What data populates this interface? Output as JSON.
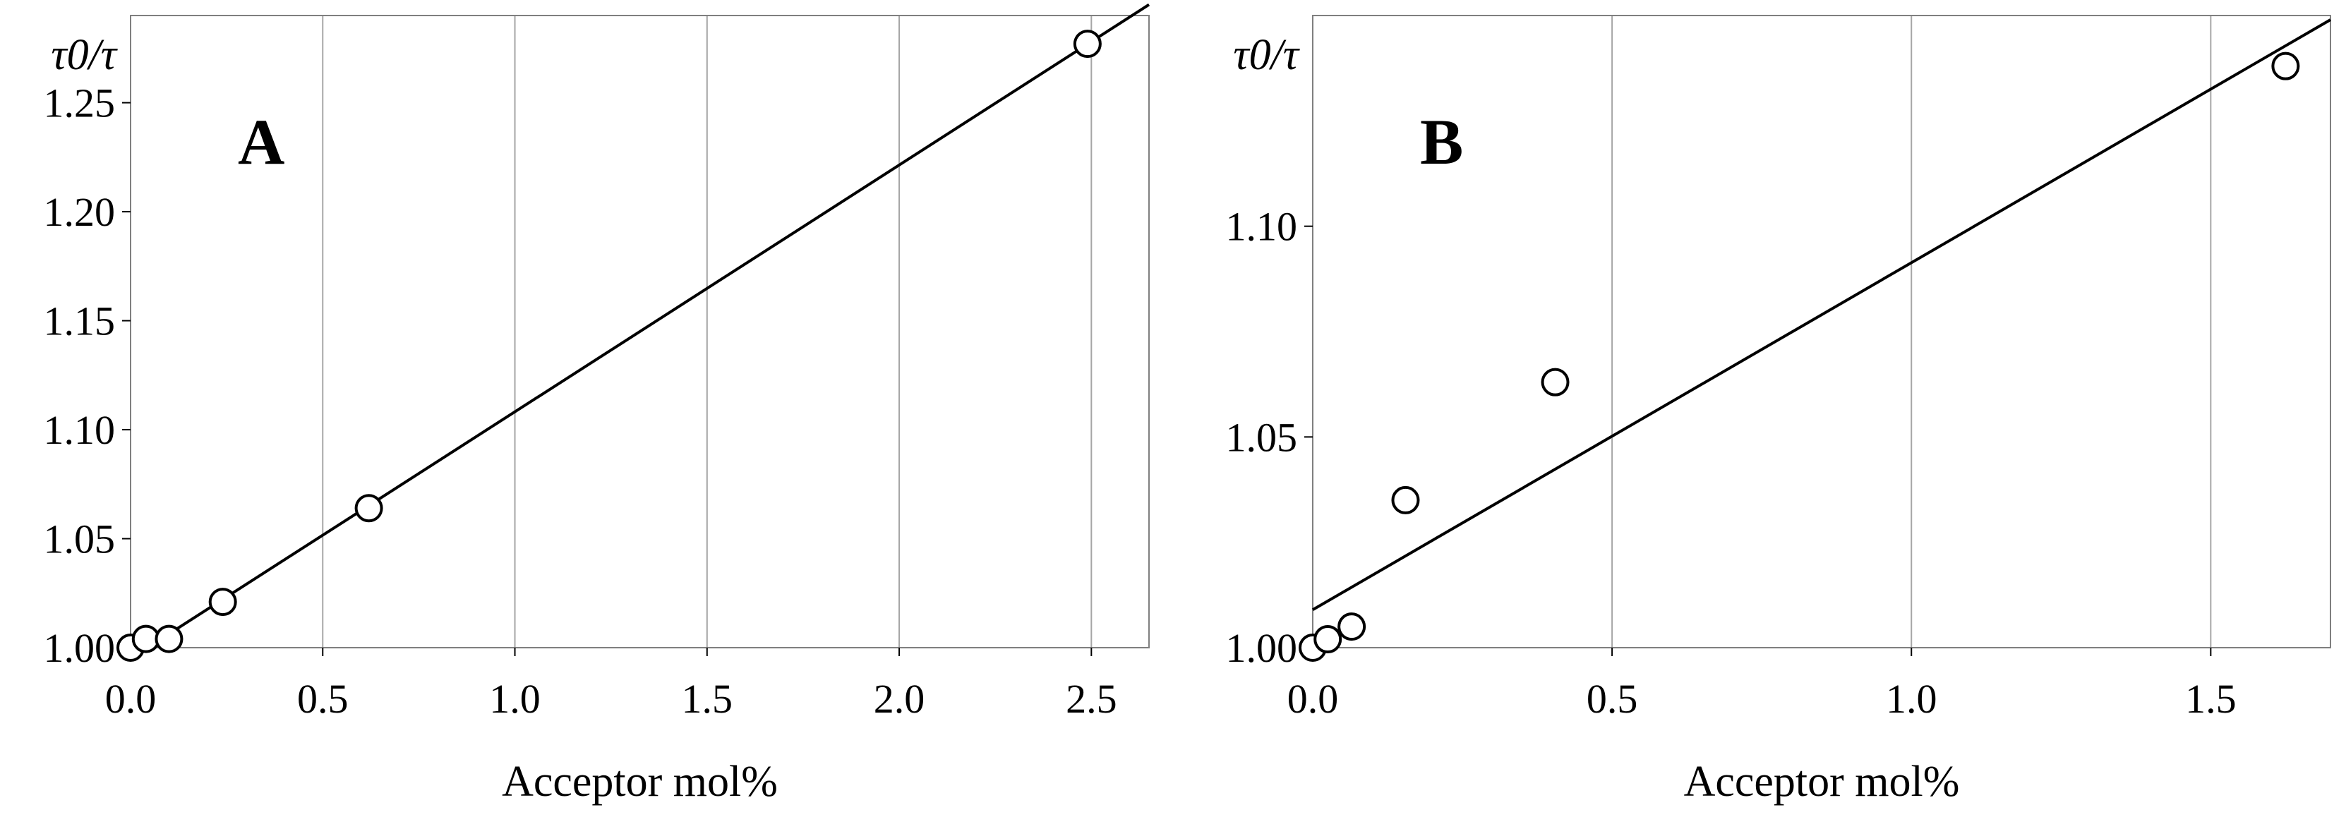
{
  "chart_data": [
    {
      "type": "scatter",
      "panel_label": "A",
      "xlabel": "Acceptor mol%",
      "ylabel": "τ0/τ",
      "xlim": [
        0,
        2.65
      ],
      "ylim": [
        1.0,
        1.29
      ],
      "xticks": [
        0.0,
        0.5,
        1.0,
        1.5,
        2.0,
        2.5
      ],
      "xtick_labels": [
        "0.0",
        "0.5",
        "1.0",
        "1.5",
        "2.0",
        "2.5"
      ],
      "yticks": [
        1.0,
        1.05,
        1.1,
        1.15,
        1.2,
        1.25
      ],
      "ytick_labels": [
        "1.00",
        "1.05",
        "1.10",
        "1.15",
        "1.20",
        "1.25"
      ],
      "grid": "vertical",
      "points": [
        {
          "x": 0.0,
          "y": 1.0
        },
        {
          "x": 0.04,
          "y": 1.004
        },
        {
          "x": 0.1,
          "y": 1.004
        },
        {
          "x": 0.24,
          "y": 1.021
        },
        {
          "x": 0.62,
          "y": 1.064
        },
        {
          "x": 2.49,
          "y": 1.277
        }
      ],
      "fit_line": {
        "x": [
          0.0,
          2.65
        ],
        "y": [
          0.995,
          1.295
        ]
      }
    },
    {
      "type": "scatter",
      "panel_label": "B",
      "xlabel": "Acceptor mol%",
      "ylabel": "τ0/τ",
      "xlim": [
        0,
        1.7
      ],
      "ylim": [
        1.0,
        1.15
      ],
      "xticks": [
        0.0,
        0.5,
        1.0,
        1.5
      ],
      "xtick_labels": [
        "0.0",
        "0.5",
        "1.0",
        "1.5"
      ],
      "yticks": [
        1.0,
        1.05,
        1.1
      ],
      "ytick_labels": [
        "1.00",
        "1.05",
        "1.10"
      ],
      "grid": "vertical",
      "points": [
        {
          "x": 0.0,
          "y": 1.0
        },
        {
          "x": 0.025,
          "y": 1.002
        },
        {
          "x": 0.065,
          "y": 1.005
        },
        {
          "x": 0.155,
          "y": 1.035
        },
        {
          "x": 0.405,
          "y": 1.063
        },
        {
          "x": 1.625,
          "y": 1.138
        }
      ],
      "fit_line": {
        "x": [
          0.0,
          1.7
        ],
        "y": [
          1.009,
          1.149
        ]
      }
    }
  ]
}
